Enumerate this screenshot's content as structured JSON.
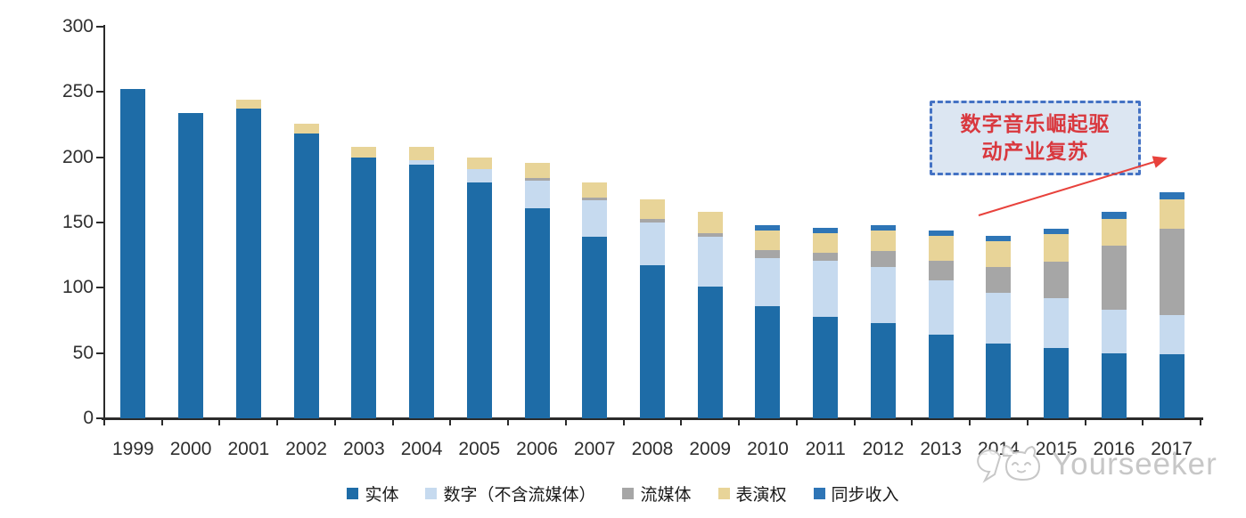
{
  "chart_data": {
    "type": "bar",
    "stacked": true,
    "title": "",
    "xlabel": "",
    "ylabel": "",
    "categories": [
      "1999",
      "2000",
      "2001",
      "2002",
      "2003",
      "2004",
      "2005",
      "2006",
      "2007",
      "2008",
      "2009",
      "2010",
      "2011",
      "2012",
      "2013",
      "2014",
      "2015",
      "2016",
      "2017"
    ],
    "series": [
      {
        "name": "实体",
        "color": "#1e6ca7",
        "values": [
          252,
          234,
          237,
          218,
          200,
          194,
          181,
          161,
          139,
          117,
          101,
          86,
          78,
          73,
          64,
          57,
          54,
          50,
          49
        ]
      },
      {
        "name": "数字（不含流媒体）",
        "color": "#c6daef",
        "values": [
          0,
          0,
          0,
          0,
          0,
          4,
          10,
          21,
          28,
          33,
          38,
          37,
          43,
          43,
          42,
          39,
          38,
          33,
          30
        ]
      },
      {
        "name": "流媒体",
        "color": "#a6a6a6",
        "values": [
          0,
          0,
          0,
          0,
          0,
          0,
          0,
          2,
          2,
          3,
          3,
          6,
          6,
          12,
          15,
          20,
          28,
          49,
          66
        ]
      },
      {
        "name": "表演权",
        "color": "#e8d498",
        "values": [
          0,
          0,
          7,
          8,
          8,
          10,
          9,
          12,
          12,
          15,
          16,
          15,
          15,
          16,
          19,
          20,
          21,
          21,
          23
        ]
      },
      {
        "name": "同步收入",
        "color": "#2e75b6",
        "values": [
          0,
          0,
          0,
          0,
          0,
          0,
          0,
          0,
          0,
          0,
          0,
          4,
          4,
          4,
          4,
          4,
          4,
          5,
          5
        ]
      }
    ],
    "ylim": [
      0,
      300
    ],
    "yticks": [
      0,
      50,
      100,
      150,
      200,
      250,
      300
    ],
    "grid": false,
    "legend_position": "bottom"
  },
  "annotation": {
    "text": "数字音乐崛起驱动产业复苏",
    "lines": [
      "数字音乐崛起驱",
      "动产业复苏"
    ],
    "text_color": "#d9383e",
    "border_color": "#4472c4",
    "bg_color": "#dce6f2",
    "arrow_color": "#e8423c"
  },
  "watermark": {
    "text": "Yourseeker",
    "logo": "cat-face-logo",
    "color": "#c7c7c7"
  }
}
